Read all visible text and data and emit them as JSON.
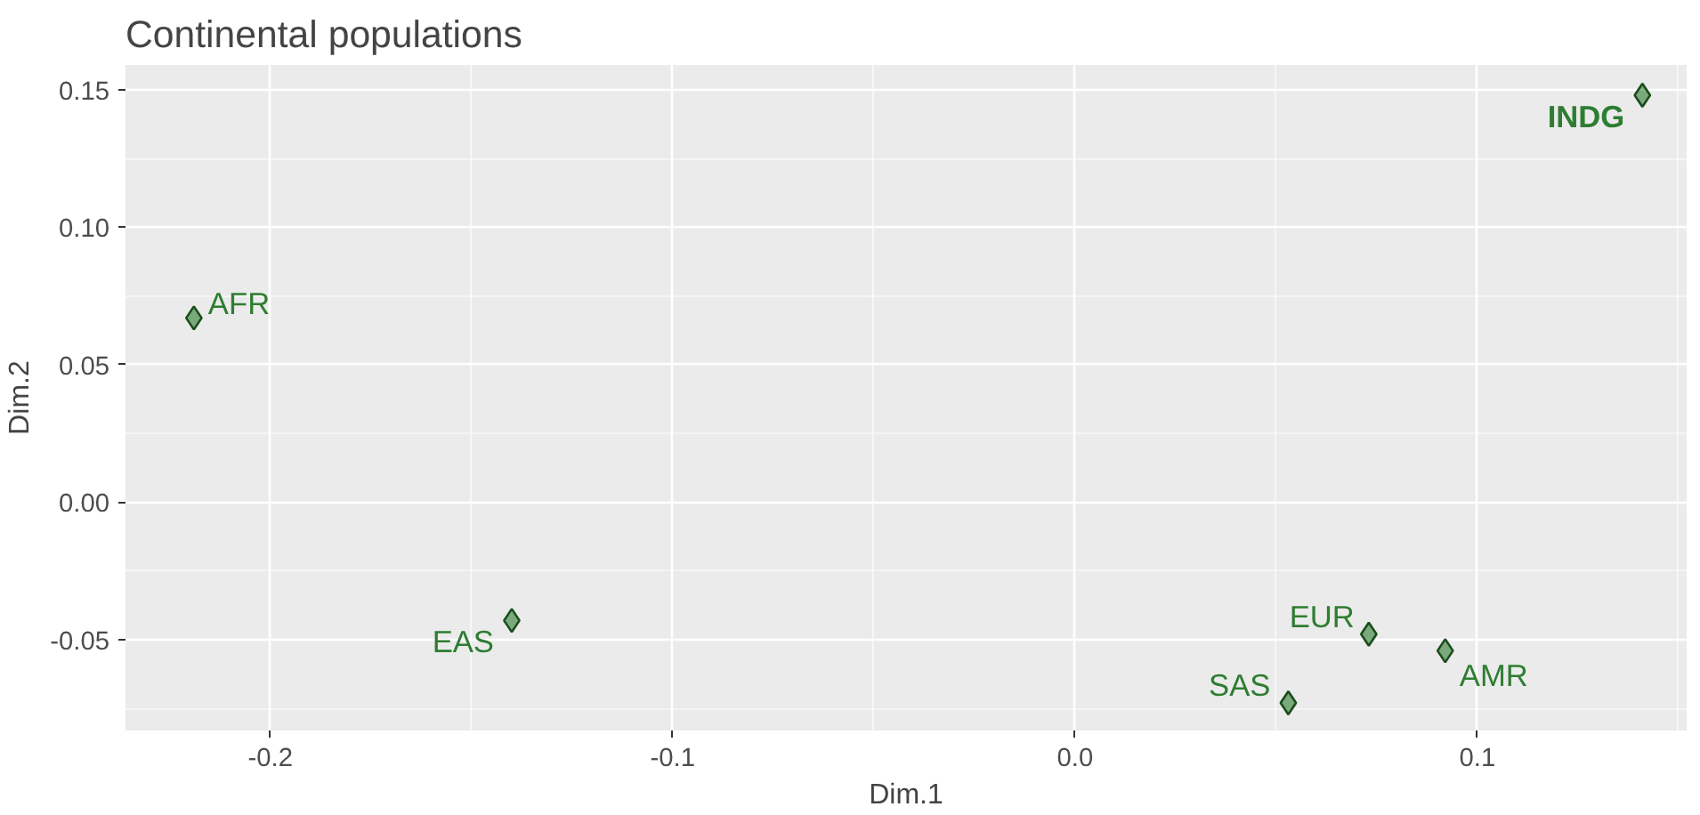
{
  "chart_data": {
    "type": "scatter",
    "title": "Continental populations",
    "xlabel": "Dim.1",
    "ylabel": "Dim.2",
    "series": [
      {
        "color": "#2e7d32",
        "x": [
          -0.219,
          -0.14,
          0.073,
          0.053,
          0.092,
          0.141
        ],
        "values": [
          0.067,
          -0.043,
          -0.048,
          -0.073,
          -0.054,
          0.148
        ]
      }
    ],
    "annotations": [
      {
        "text": "AFR",
        "x": -0.219,
        "y": 0.067
      },
      {
        "text": "EAS",
        "x": -0.14,
        "y": -0.043
      },
      {
        "text": "EUR",
        "x": 0.073,
        "y": -0.048
      },
      {
        "text": "SAS",
        "x": 0.053,
        "y": -0.073
      },
      {
        "text": "AMR",
        "x": 0.092,
        "y": -0.054
      },
      {
        "text": "INDG",
        "x": 0.141,
        "y": 0.148
      }
    ],
    "xlim": [
      -0.236,
      0.152
    ],
    "ylim": [
      -0.083,
      0.159
    ],
    "xticks": [
      -0.2,
      -0.1,
      {
        "value": 0.0,
        "label": "0.0"
      },
      0.1
    ],
    "yticks": [
      0.15,
      {
        "value": 0.1,
        "label": "0.10"
      },
      0.05,
      {
        "value": 0.0,
        "label": "0.00"
      },
      -0.05
    ],
    "grid": true,
    "marker": "diamond"
  }
}
